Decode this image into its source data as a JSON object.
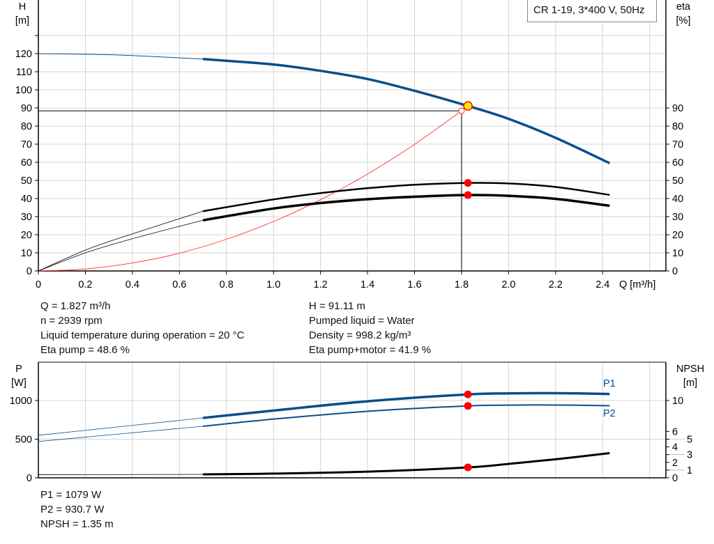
{
  "legend_box": "CR 1-19, 3*400 V, 50Hz",
  "info_top_left": [
    "Q = 1.827 m³/h",
    "n = 2939 rpm",
    "Liquid temperature during operation = 20 °C",
    "Eta pump = 48.6 %"
  ],
  "info_top_right": [
    "H = 91.11 m",
    "Pumped liquid = Water",
    "Density = 998.2 kg/m³",
    "Eta pump+motor = 41.9 %"
  ],
  "info_bottom": [
    "P1 = 1079 W",
    "P2 = 930.7 W",
    "NPSH = 1.35 m"
  ],
  "colors": {
    "head": "#0b4e8a",
    "eta": "#000000",
    "system": "#ff3030",
    "duty_point": "#ffee00",
    "marker": "#ff0000",
    "power": "#0b4e8a",
    "npsh": "#000000",
    "grid": "#d4d4d4"
  },
  "chart_data": [
    {
      "type": "line",
      "xlabel": "Q [m³/h]",
      "ylabel": "H\n[m]",
      "ylabel_left": [
        "H",
        "[m]"
      ],
      "ylabel_right": [
        "eta",
        "[%]"
      ],
      "xlim": [
        0,
        2.6
      ],
      "ylim_left": [
        0,
        130
      ],
      "ylim_right": [
        0,
        100
      ],
      "x_ticks": [
        "0",
        "0.2",
        "0.4",
        "0.6",
        "0.8",
        "1.0",
        "1.2",
        "1.4",
        "1.6",
        "1.8",
        "2.0",
        "2.2",
        "2.4"
      ],
      "y_ticks_left": [
        "0",
        "10",
        "20",
        "30",
        "40",
        "50",
        "60",
        "70",
        "80",
        "90",
        "100",
        "110",
        "120"
      ],
      "y_ticks_right": [
        "0",
        "10",
        "20",
        "30",
        "40",
        "50",
        "60",
        "70",
        "80",
        "90"
      ],
      "grid": true,
      "series": [
        {
          "key": "head",
          "axis": "left",
          "thin_until": 0.7,
          "x": [
            0,
            0.35,
            0.7,
            1.0,
            1.2,
            1.4,
            1.6,
            1.827,
            2.0,
            2.2,
            2.43
          ],
          "y": [
            120,
            119.2,
            117,
            114,
            110.5,
            106,
            99.5,
            91.11,
            84,
            73.5,
            59.5
          ]
        },
        {
          "key": "eta_pump",
          "axis": "right",
          "thin_until": 0.7,
          "x": [
            0,
            0.2,
            0.4,
            0.7,
            1.0,
            1.2,
            1.4,
            1.6,
            1.827,
            2.0,
            2.2,
            2.43
          ],
          "y": [
            0,
            11.5,
            20.5,
            33,
            39.5,
            43,
            45.7,
            47.6,
            48.6,
            48.3,
            46.4,
            42
          ]
        },
        {
          "key": "eta_pump_motor",
          "axis": "right",
          "thin_until": 0.7,
          "x": [
            0,
            0.2,
            0.4,
            0.7,
            1.0,
            1.2,
            1.4,
            1.6,
            1.827,
            2.0,
            2.2,
            2.43
          ],
          "y": [
            0,
            10,
            17.8,
            28,
            34.5,
            37.5,
            39.6,
            41,
            41.9,
            41.5,
            39.8,
            36
          ]
        },
        {
          "key": "system",
          "axis": "left",
          "x": [
            0,
            0.2,
            0.4,
            0.6,
            0.8,
            1.0,
            1.2,
            1.4,
            1.6,
            1.8
          ],
          "y": [
            0,
            1.1,
            4.4,
            9.8,
            17.5,
            27.3,
            39.3,
            53.5,
            69.9,
            88.4
          ]
        }
      ],
      "duty_point": {
        "Q": 1.827,
        "H": 91.11,
        "eta_pump": 48.6,
        "eta_pump_motor": 41.9
      },
      "requested_point": {
        "Q": 1.8,
        "H": 88.4
      }
    },
    {
      "type": "line",
      "ylabel_left": [
        "P",
        "[W]"
      ],
      "ylabel_right": [
        "NPSH",
        "[m]"
      ],
      "xlim": [
        0,
        2.6
      ],
      "ylim_left": [
        0,
        1500
      ],
      "ylim_right": [
        0,
        13.6
      ],
      "y_ticks_left": [
        "0",
        "500",
        "1000"
      ],
      "y_ticks_right": [
        "0",
        "1",
        "2",
        "3",
        "4",
        "5",
        "6",
        "10"
      ],
      "grid": true,
      "series": [
        {
          "key": "P1",
          "name": "P1",
          "axis": "left",
          "thin_until": 0.7,
          "x": [
            0,
            0.7,
            1.0,
            1.4,
            1.827,
            2.0,
            2.2,
            2.43
          ],
          "y": [
            550,
            775,
            870,
            990,
            1079,
            1092,
            1095,
            1085
          ]
        },
        {
          "key": "P2",
          "name": "P2",
          "axis": "left",
          "thin_until": 0.7,
          "x": [
            0,
            0.7,
            1.0,
            1.4,
            1.827,
            2.0,
            2.2,
            2.43
          ],
          "y": [
            470,
            667,
            760,
            860,
            930.7,
            940,
            942,
            932
          ]
        },
        {
          "key": "NPSH",
          "axis": "right",
          "thin_until": 0.7,
          "x": [
            0,
            0.7,
            1.0,
            1.4,
            1.827,
            2.0,
            2.2,
            2.43
          ],
          "y": [
            0.4,
            0.45,
            0.55,
            0.8,
            1.35,
            1.8,
            2.4,
            3.2
          ]
        }
      ],
      "duty_point": {
        "Q": 1.827,
        "P1": 1079,
        "P2": 930.7,
        "NPSH": 1.35
      }
    }
  ]
}
